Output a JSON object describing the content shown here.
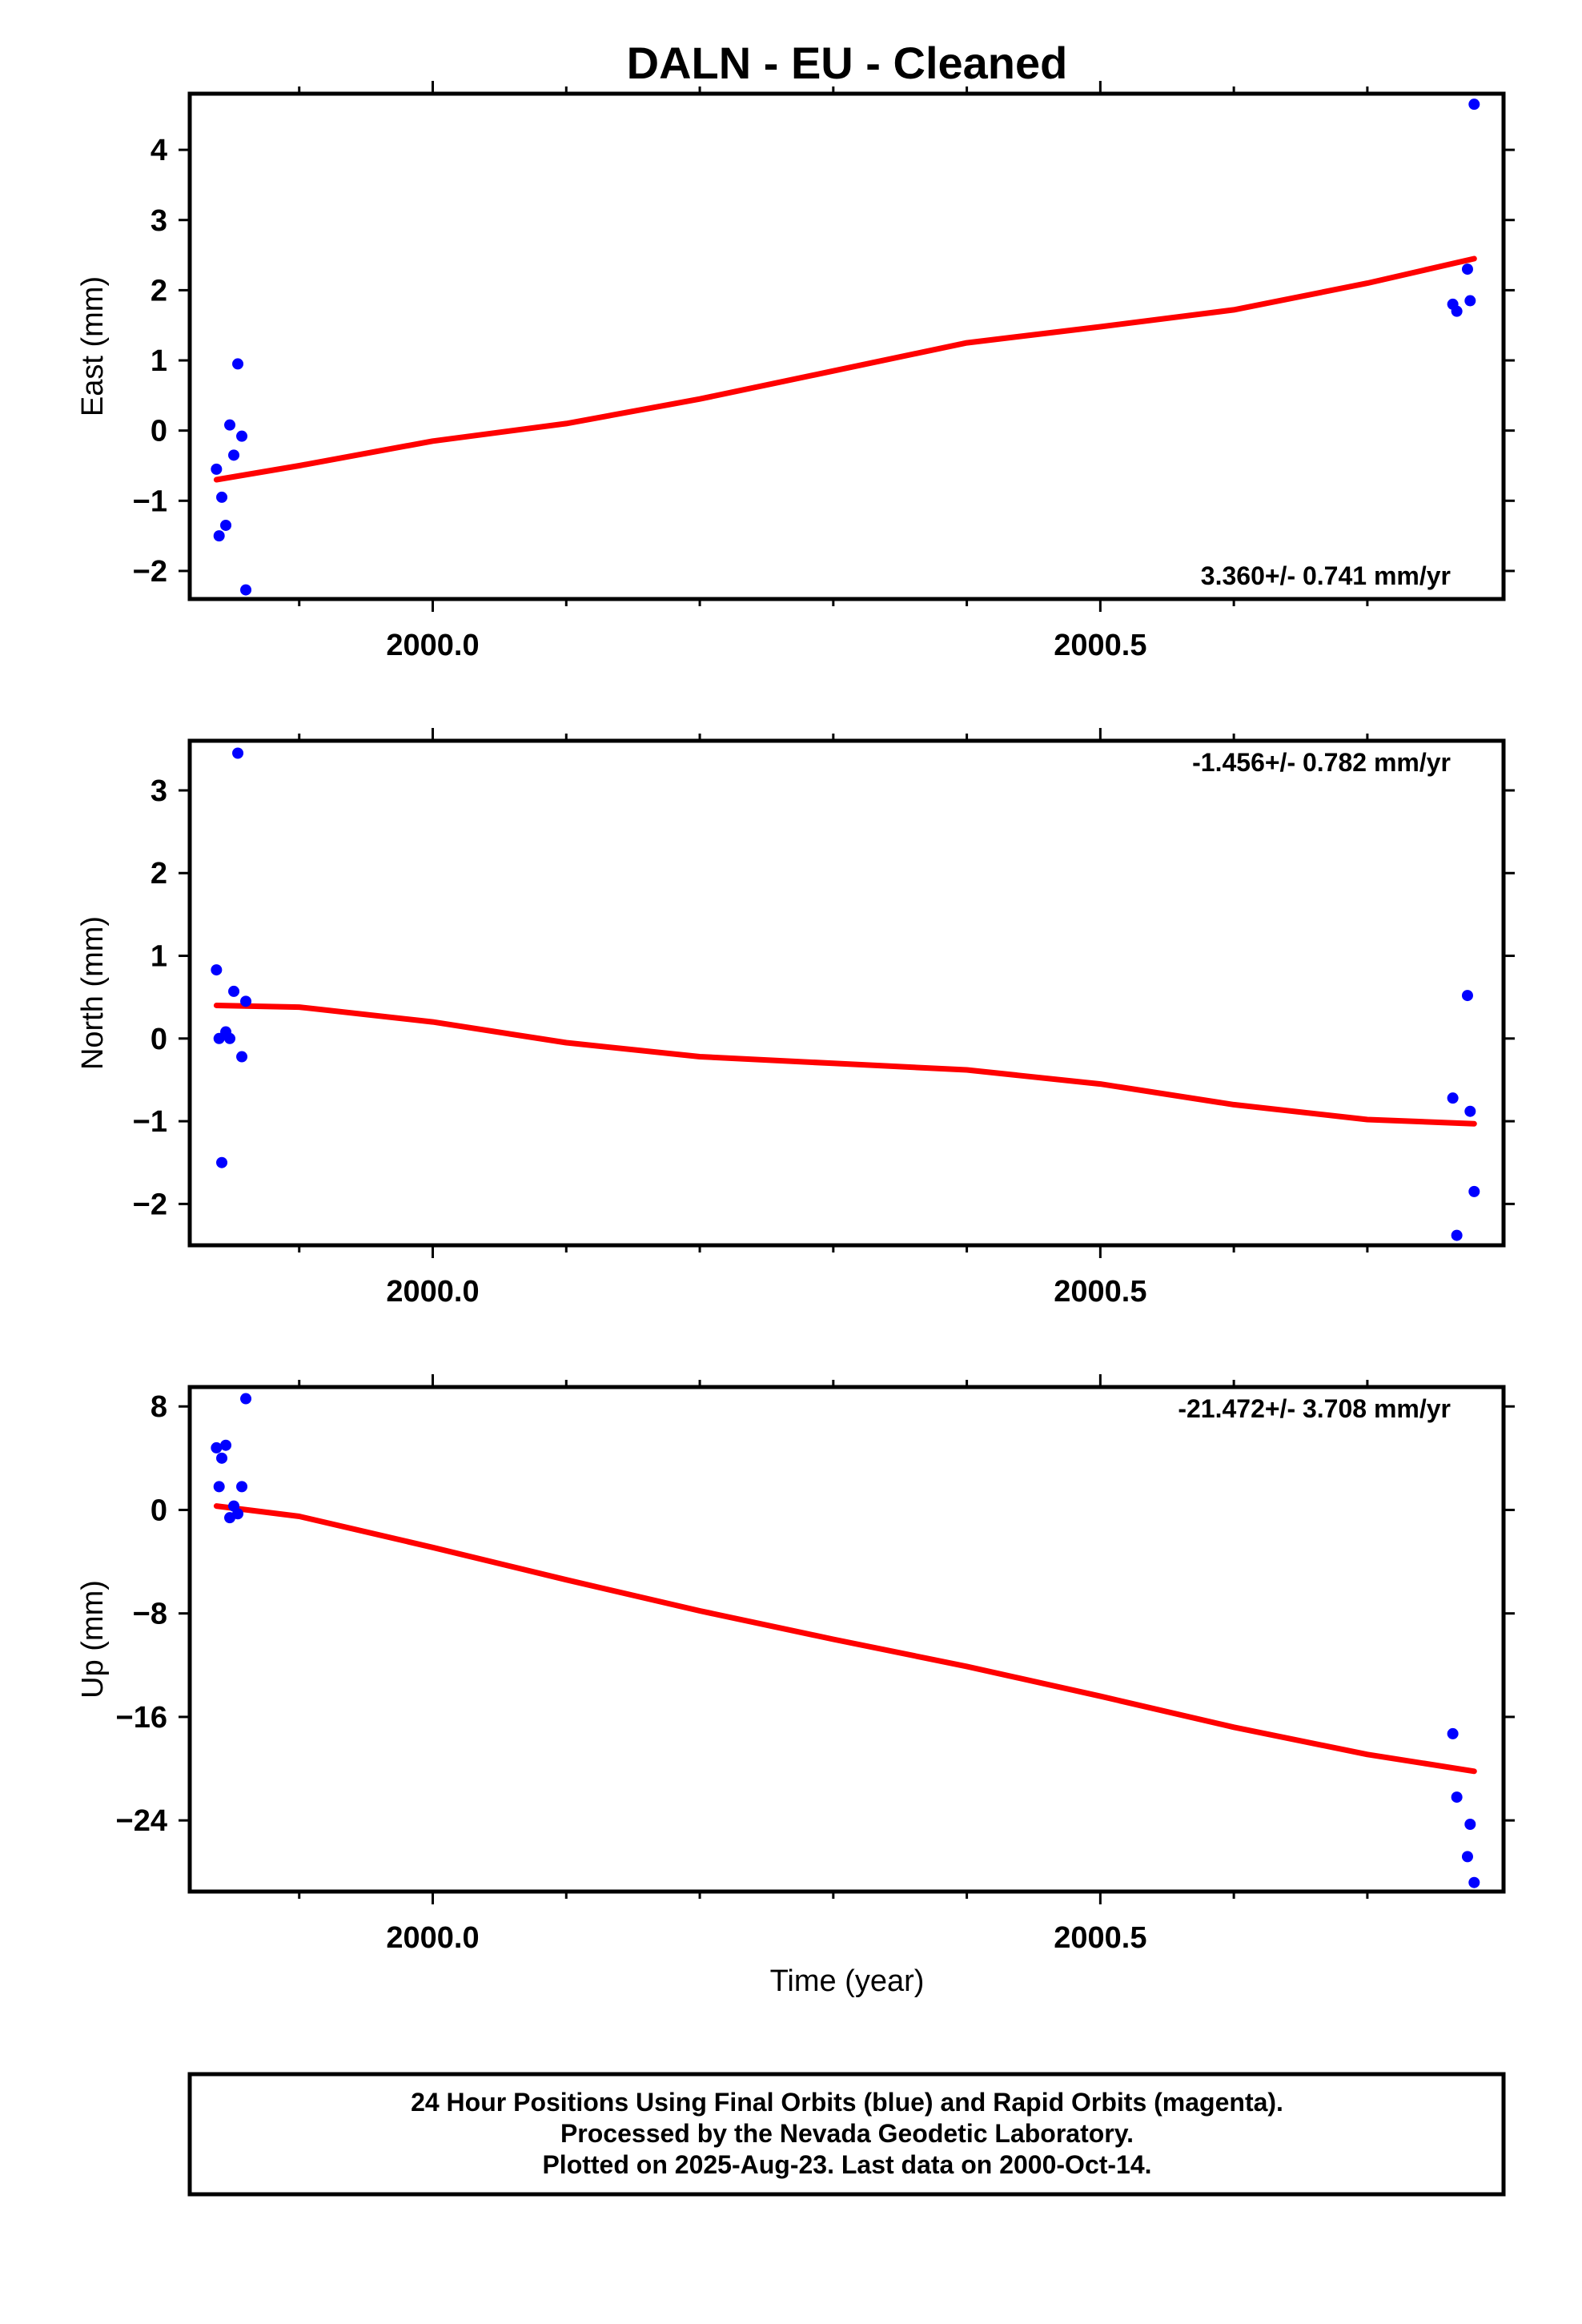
{
  "chart_data": {
    "type": "scatter",
    "title": "DALN  - EU - Cleaned",
    "xlabel": "Time (year)",
    "xlim": [
      1999.818,
      2000.802
    ],
    "xticks": [
      2000.0,
      2000.5
    ],
    "xtick_labels": [
      "2000.0",
      "2000.5"
    ],
    "colors": {
      "points": "#0000ff",
      "fit": "#ff0000",
      "frame": "#000000"
    },
    "panels": [
      {
        "ylabel": "East (mm)",
        "ylim": [
          -2.4,
          4.8
        ],
        "yticks": [
          4,
          3,
          2,
          1,
          0,
          -1,
          -2
        ],
        "ytick_labels": [
          "4",
          "3",
          "2",
          "1",
          "0",
          "−1",
          "−2"
        ],
        "rate": "3.360+/- 0.741 mm/yr",
        "rate_position": "bottom-right",
        "points": [
          [
            1999.838,
            -0.55
          ],
          [
            1999.84,
            -1.5
          ],
          [
            1999.842,
            -0.95
          ],
          [
            1999.845,
            -1.35
          ],
          [
            1999.848,
            0.08
          ],
          [
            1999.851,
            -0.35
          ],
          [
            1999.854,
            0.95
          ],
          [
            1999.857,
            -0.08
          ],
          [
            1999.86,
            -2.27
          ],
          [
            2000.764,
            1.8
          ],
          [
            2000.767,
            1.7
          ],
          [
            2000.775,
            2.3
          ],
          [
            2000.777,
            1.85
          ],
          [
            2000.78,
            4.65
          ]
        ],
        "fit": [
          [
            1999.838,
            -0.7
          ],
          [
            1999.9,
            -0.5
          ],
          [
            2000.0,
            -0.15
          ],
          [
            2000.1,
            0.1
          ],
          [
            2000.2,
            0.45
          ],
          [
            2000.3,
            0.85
          ],
          [
            2000.4,
            1.25
          ],
          [
            2000.5,
            1.48
          ],
          [
            2000.6,
            1.72
          ],
          [
            2000.7,
            2.1
          ],
          [
            2000.78,
            2.45
          ]
        ]
      },
      {
        "ylabel": "North (mm)",
        "ylim": [
          -2.5,
          3.6
        ],
        "yticks": [
          3,
          2,
          1,
          0,
          -1,
          -2
        ],
        "ytick_labels": [
          "3",
          "2",
          "1",
          "0",
          "−1",
          "−2"
        ],
        "rate": "-1.456+/- 0.782 mm/yr",
        "rate_position": "top-right",
        "points": [
          [
            1999.838,
            0.83
          ],
          [
            1999.84,
            0.0
          ],
          [
            1999.842,
            -1.5
          ],
          [
            1999.845,
            0.08
          ],
          [
            1999.848,
            0.0
          ],
          [
            1999.851,
            0.57
          ],
          [
            1999.854,
            3.45
          ],
          [
            1999.857,
            -0.22
          ],
          [
            1999.86,
            0.45
          ],
          [
            2000.764,
            -0.72
          ],
          [
            2000.775,
            0.52
          ],
          [
            2000.777,
            -0.88
          ],
          [
            2000.78,
            -1.85
          ],
          [
            2000.767,
            -2.38
          ]
        ],
        "fit": [
          [
            1999.838,
            0.4
          ],
          [
            1999.9,
            0.38
          ],
          [
            2000.0,
            0.2
          ],
          [
            2000.1,
            -0.05
          ],
          [
            2000.2,
            -0.22
          ],
          [
            2000.3,
            -0.3
          ],
          [
            2000.4,
            -0.38
          ],
          [
            2000.5,
            -0.55
          ],
          [
            2000.6,
            -0.8
          ],
          [
            2000.7,
            -0.98
          ],
          [
            2000.78,
            -1.03
          ]
        ]
      },
      {
        "ylabel": "Up (mm)",
        "ylim": [
          -29.5,
          9.5
        ],
        "yticks": [
          8,
          0,
          -8,
          -16,
          -24
        ],
        "ytick_labels": [
          "8",
          "0",
          "−8",
          "−16",
          "−24"
        ],
        "rate": "-21.472+/- 3.708 mm/yr",
        "rate_position": "top-right",
        "points": [
          [
            1999.838,
            4.8
          ],
          [
            1999.84,
            1.8
          ],
          [
            1999.842,
            4.0
          ],
          [
            1999.845,
            5.0
          ],
          [
            1999.848,
            -0.6
          ],
          [
            1999.851,
            0.3
          ],
          [
            1999.854,
            -0.3
          ],
          [
            1999.857,
            1.8
          ],
          [
            1999.86,
            8.6
          ],
          [
            2000.764,
            -17.3
          ],
          [
            2000.767,
            -22.2
          ],
          [
            2000.775,
            -26.8
          ],
          [
            2000.777,
            -24.3
          ],
          [
            2000.78,
            -28.8
          ]
        ],
        "fit": [
          [
            1999.838,
            0.3
          ],
          [
            1999.9,
            -0.5
          ],
          [
            2000.0,
            -2.9
          ],
          [
            2000.1,
            -5.4
          ],
          [
            2000.2,
            -7.8
          ],
          [
            2000.3,
            -10.0
          ],
          [
            2000.4,
            -12.1
          ],
          [
            2000.5,
            -14.4
          ],
          [
            2000.6,
            -16.8
          ],
          [
            2000.7,
            -18.9
          ],
          [
            2000.78,
            -20.2
          ]
        ]
      }
    ]
  },
  "footer": {
    "line1": "24 Hour Positions Using Final Orbits (blue) and Rapid Orbits (magenta).",
    "line2": "Processed by the Nevada Geodetic Laboratory.",
    "line3": "Plotted on 2025-Aug-23. Last data on 2000-Oct-14."
  }
}
